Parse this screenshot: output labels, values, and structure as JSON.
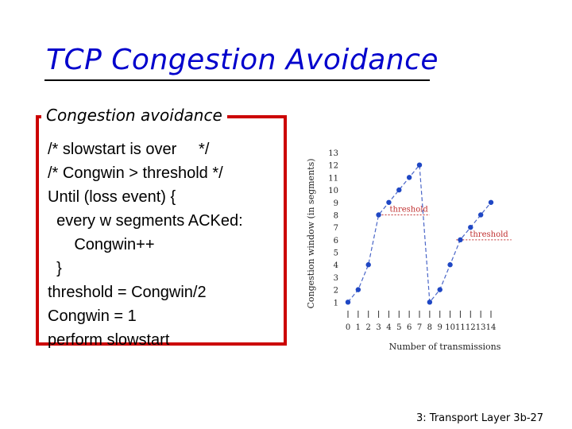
{
  "slide": {
    "title": "TCP Congestion Avoidance",
    "box_label": "Congestion avoidance",
    "code_lines": [
      "/* slowstart is over     */",
      "/* Congwin > threshold */",
      "Until (loss event) {",
      "  every w segments ACKed:",
      "      Congwin++",
      "  }",
      "threshold = Congwin/2",
      "Congwin = 1",
      "perform slowstart"
    ],
    "footer": "3: Transport Layer 3b-27"
  },
  "colors": {
    "title": "#0000cc",
    "box_border": "#cc0000",
    "line": "#4a66c8",
    "point": "#1f47c4",
    "threshold": "#c03030"
  },
  "chart_data": {
    "type": "line",
    "xlabel": "Number of transmissions",
    "ylabel": "Congestion window (in segments)",
    "x_ticks": [
      "0",
      "1",
      "2",
      "3",
      "4",
      "5",
      "6",
      "7",
      "8",
      "9",
      "10",
      "11",
      "12",
      "13",
      "14"
    ],
    "y_ticks": [
      "1",
      "2",
      "3",
      "4",
      "5",
      "6",
      "7",
      "8",
      "9",
      "10",
      "11",
      "12",
      "13"
    ],
    "xlim": [
      0,
      14
    ],
    "ylim": [
      0,
      13
    ],
    "series": [
      {
        "x": [
          0,
          1,
          2,
          3,
          4,
          5,
          6,
          7,
          8,
          9,
          10,
          11,
          12,
          13,
          14
        ],
        "y": [
          1,
          2,
          4,
          8,
          9,
          10,
          11,
          12,
          1,
          2,
          4,
          6,
          7,
          8,
          9
        ]
      }
    ],
    "threshold_lines": [
      {
        "label": "threshold",
        "y": 8,
        "x_start": 3,
        "x_end": 8
      },
      {
        "label": "threshold",
        "y": 6,
        "x_start": 10.6,
        "x_end": 16
      }
    ]
  }
}
